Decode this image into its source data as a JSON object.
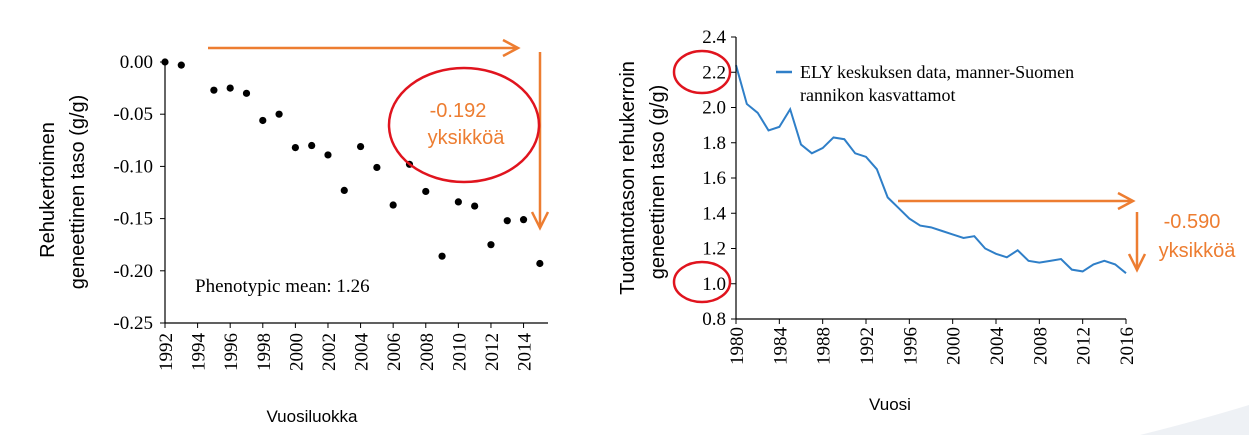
{
  "colors": {
    "annotation_orange": "#ed7d31",
    "circle_red": "#e0141e",
    "line_blue": "#2f7fc8",
    "axis_black": "#000000"
  },
  "chart_data": [
    {
      "type": "scatter",
      "title": "",
      "xlabel": "Vuosiluokka",
      "ylabel_line1": "Rehukertoimen",
      "ylabel_line2": "geneettinen taso  (g/g)",
      "xlim": [
        1992,
        2015.5
      ],
      "ylim": [
        -0.25,
        0.0
      ],
      "xticks": [
        "1992",
        "1994",
        "1996",
        "1998",
        "2000",
        "2002",
        "2004",
        "2006",
        "2008",
        "2010",
        "2012",
        "2014"
      ],
      "yticks": [
        "0.00",
        "-0.05",
        "-0.10",
        "-0.15",
        "-0.20",
        "-0.25"
      ],
      "annotation": "Phenotypic mean: 1.26",
      "arrow_label_line1": "-0.192",
      "arrow_label_line2": "yksikköä",
      "points": [
        [
          1992,
          0.0
        ],
        [
          1993,
          -0.003
        ],
        [
          1995,
          -0.027
        ],
        [
          1996,
          -0.025
        ],
        [
          1997,
          -0.03
        ],
        [
          1998,
          -0.056
        ],
        [
          1999,
          -0.05
        ],
        [
          2000,
          -0.082
        ],
        [
          2001,
          -0.08
        ],
        [
          2002,
          -0.089
        ],
        [
          2003,
          -0.123
        ],
        [
          2004,
          -0.081
        ],
        [
          2005,
          -0.101
        ],
        [
          2006,
          -0.137
        ],
        [
          2007,
          -0.098
        ],
        [
          2008,
          -0.124
        ],
        [
          2009,
          -0.186
        ],
        [
          2010,
          -0.134
        ],
        [
          2011,
          -0.138
        ],
        [
          2012,
          -0.175
        ],
        [
          2013,
          -0.152
        ],
        [
          2014,
          -0.151
        ],
        [
          2015,
          -0.193
        ]
      ]
    },
    {
      "type": "line",
      "title": "",
      "xlabel": "Vuosi",
      "ylabel_line1": "Tuotantotason rehukerroin",
      "ylabel_line2": "geneettinen taso  (g/g)",
      "xlim": [
        1980,
        2016
      ],
      "ylim": [
        0.8,
        2.4
      ],
      "xticks": [
        "1980",
        "1984",
        "1988",
        "1992",
        "1996",
        "2000",
        "2004",
        "2008",
        "2012",
        "2016"
      ],
      "yticks": [
        "2.4",
        "2.2",
        "2.0",
        "1.8",
        "1.6",
        "1.4",
        "1.2",
        "1.0",
        "0.8"
      ],
      "legend_line1": "ELY keskuksen data, manner-Suomen",
      "legend_line2": "rannikon kasvattamot",
      "arrow_label_line1": "-0.590",
      "arrow_label_line2": "yksikköä",
      "series": [
        {
          "x": [
            1980,
            1981,
            1982,
            1983,
            1984,
            1985,
            1986,
            1987,
            1988,
            1989,
            1990,
            1991,
            1992,
            1993,
            1994,
            1995,
            1996,
            1997,
            1998,
            1999,
            2000,
            2001,
            2002,
            2003,
            2004,
            2005,
            2006,
            2007,
            2008,
            2009,
            2010,
            2011,
            2012,
            2013,
            2014,
            2015,
            2016
          ],
          "values": [
            2.24,
            2.02,
            1.97,
            1.87,
            1.89,
            1.99,
            1.79,
            1.74,
            1.77,
            1.83,
            1.82,
            1.74,
            1.72,
            1.65,
            1.49,
            1.43,
            1.37,
            1.33,
            1.32,
            1.3,
            1.28,
            1.26,
            1.27,
            1.2,
            1.17,
            1.15,
            1.19,
            1.13,
            1.12,
            1.13,
            1.14,
            1.08,
            1.07,
            1.11,
            1.13,
            1.11,
            1.06
          ]
        }
      ]
    }
  ]
}
